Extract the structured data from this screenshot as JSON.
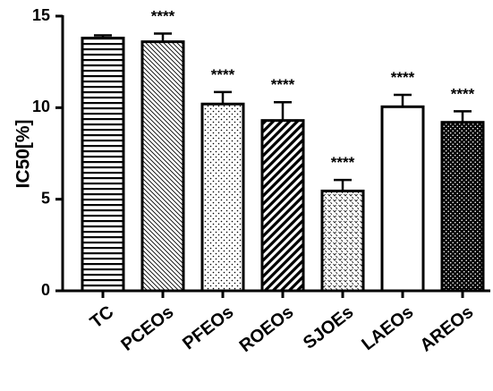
{
  "chart_data": {
    "type": "bar",
    "ylabel": "IC50[%]",
    "categories": [
      "TC",
      "PCEOs",
      "PFEOs",
      "ROEOs",
      "SJOEs",
      "LAEOs",
      "AREOs"
    ],
    "values": [
      13.8,
      13.6,
      10.2,
      9.3,
      5.45,
      10.05,
      9.2
    ],
    "errors": [
      0.15,
      0.45,
      0.65,
      1.0,
      0.6,
      0.65,
      0.6
    ],
    "annotations": [
      null,
      "****",
      "****",
      "****",
      "****",
      "****",
      "****"
    ],
    "color": "#000000",
    "ylim": [
      0,
      15
    ],
    "yticks": [
      0,
      5,
      10,
      15
    ]
  }
}
